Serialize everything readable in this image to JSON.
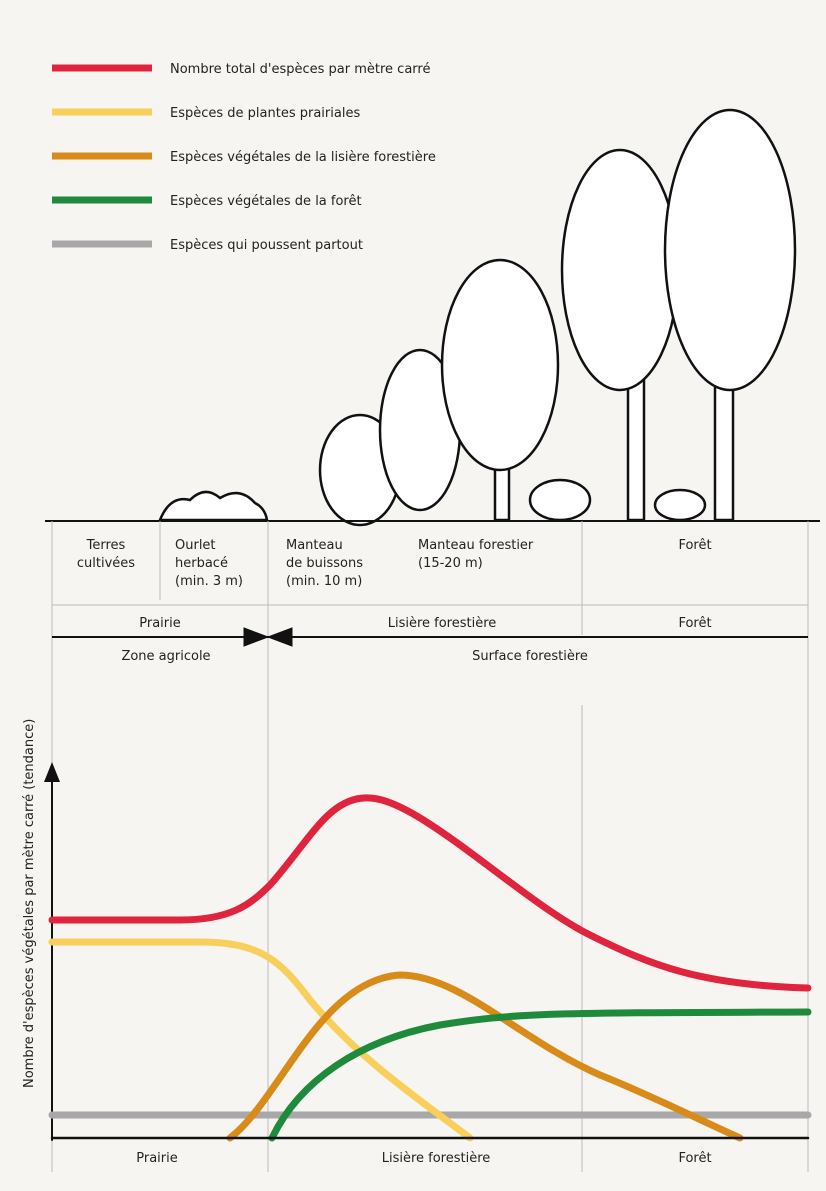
{
  "legend": [
    {
      "label": "Nombre total d'espèces par mètre carré",
      "color": "#e0243d"
    },
    {
      "label": "Espèces de plantes prairiales",
      "color": "#f7cf5a"
    },
    {
      "label": "Espèces végétales de la lisière forestière",
      "color": "#d98b1a"
    },
    {
      "label": "Espèces végétales de la forêt",
      "color": "#1f8a3c"
    },
    {
      "label": "Espèces qui poussent partout",
      "color": "#a8a8a8"
    }
  ],
  "zones": [
    [
      "Terres",
      "cultivées"
    ],
    [
      "Ourlet",
      "herbacé",
      "(min. 3 m)"
    ],
    [
      "Manteau",
      "de buissons",
      "(min. 10 m)"
    ],
    [
      "Manteau forestier",
      "(15-20 m)"
    ],
    [
      "Forêt"
    ]
  ],
  "bands": [
    "Prairie",
    "Lisière forestière",
    "Forêt"
  ],
  "areas": [
    "Zone agricole",
    "Surface forestière"
  ],
  "y_axis_label": "Nombre d'espèces végétales par mètre carré (tendance)",
  "bottom_labels": [
    "Prairie",
    "Lisière forestière",
    "Forêt"
  ]
}
